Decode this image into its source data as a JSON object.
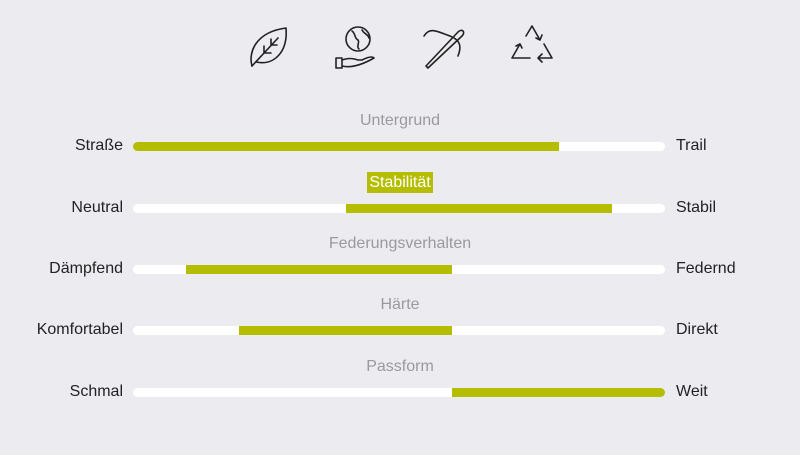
{
  "icons": [
    "leaf-icon",
    "globe-in-hand-icon",
    "needle-thread-icon",
    "recycle-icon"
  ],
  "accent_color": "#b5bd00",
  "scales": [
    {
      "title": "Untergrund",
      "left": "Straße",
      "right": "Trail",
      "range": [
        0,
        0.8
      ],
      "active": false
    },
    {
      "title": "Stabilität",
      "left": "Neutral",
      "right": "Stabil",
      "range": [
        0.4,
        0.9
      ],
      "active": true
    },
    {
      "title": "Federungsverhalten",
      "left": "Dämpfend",
      "right": "Federnd",
      "range": [
        0.1,
        0.6
      ],
      "active": false
    },
    {
      "title": "Härte",
      "left": "Komfortabel",
      "right": "Direkt",
      "range": [
        0.2,
        0.6
      ],
      "active": false
    },
    {
      "title": "Passform",
      "left": "Schmal",
      "right": "Weit",
      "range": [
        0.6,
        1.0
      ],
      "active": false
    }
  ]
}
